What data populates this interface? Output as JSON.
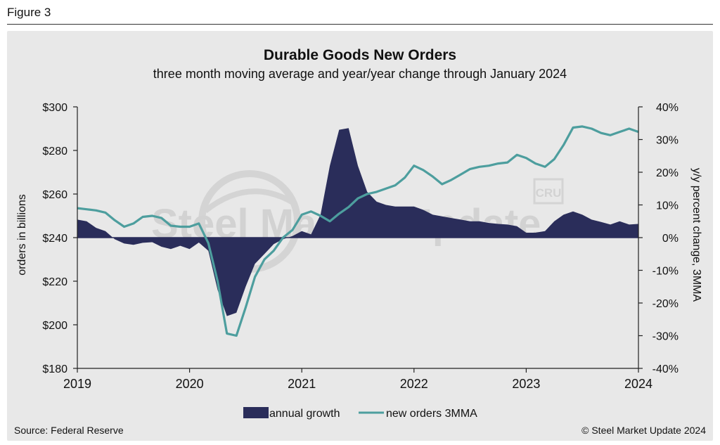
{
  "figure_label": "Figure 3",
  "footer": {
    "source": "Source: Federal Reserve",
    "copyright": "© Steel Market Update 2024"
  },
  "watermark": {
    "brand": "Steel Market Update",
    "badge": "CRU"
  },
  "colors": {
    "panel_background": "#e8e8e8",
    "annual_growth_fill": "#2a2d5a",
    "new_orders_line": "#4d9e9e"
  },
  "chart_data": {
    "type": "area+line",
    "title": "Durable Goods New Orders",
    "subtitle": "three month moving average and year/year change through January 2024",
    "ylabel_left": "orders in billions",
    "ylabel_right": "y/y percent change, 3MMA",
    "x_ticks": [
      "2019",
      "2020",
      "2021",
      "2022",
      "2023",
      "2024"
    ],
    "x_range": [
      2019.0,
      2024.0
    ],
    "y_left": {
      "range": [
        180,
        300
      ],
      "ticks": [
        180,
        200,
        220,
        240,
        260,
        280,
        300
      ],
      "tick_labels": [
        "$180",
        "$200",
        "$220",
        "$240",
        "$260",
        "$280",
        "$300"
      ]
    },
    "y_right": {
      "range": [
        -40,
        40
      ],
      "ticks": [
        -40,
        -30,
        -20,
        -10,
        0,
        10,
        20,
        30,
        40
      ],
      "tick_labels": [
        "-40%",
        "-30%",
        "-20%",
        "-10%",
        "0%",
        "10%",
        "20%",
        "30%",
        "40%"
      ]
    },
    "legend": [
      "annual growth",
      "new orders 3MMA"
    ],
    "series": [
      {
        "name": "annual growth",
        "kind": "area",
        "axis": "right",
        "points": [
          [
            2019.0,
            5.5
          ],
          [
            2019.083,
            5.0
          ],
          [
            2019.167,
            3.0
          ],
          [
            2019.25,
            2.0
          ],
          [
            2019.333,
            -0.5
          ],
          [
            2019.417,
            -1.8
          ],
          [
            2019.5,
            -2.2
          ],
          [
            2019.583,
            -1.6
          ],
          [
            2019.667,
            -1.4
          ],
          [
            2019.75,
            -2.8
          ],
          [
            2019.833,
            -3.5
          ],
          [
            2019.917,
            -2.5
          ],
          [
            2020.0,
            -3.5
          ],
          [
            2020.083,
            -1.5
          ],
          [
            2020.167,
            -4.0
          ],
          [
            2020.25,
            -16.0
          ],
          [
            2020.333,
            -24.0
          ],
          [
            2020.417,
            -23.0
          ],
          [
            2020.5,
            -15.0
          ],
          [
            2020.583,
            -8.0
          ],
          [
            2020.667,
            -5.0
          ],
          [
            2020.75,
            -2.0
          ],
          [
            2020.833,
            -0.5
          ],
          [
            2020.917,
            0.5
          ],
          [
            2021.0,
            2.0
          ],
          [
            2021.083,
            1.0
          ],
          [
            2021.167,
            7.0
          ],
          [
            2021.25,
            22.0
          ],
          [
            2021.333,
            33.0
          ],
          [
            2021.417,
            33.5
          ],
          [
            2021.5,
            22.0
          ],
          [
            2021.583,
            14.0
          ],
          [
            2021.667,
            11.0
          ],
          [
            2021.75,
            10.0
          ],
          [
            2021.833,
            9.5
          ],
          [
            2021.917,
            9.5
          ],
          [
            2022.0,
            9.5
          ],
          [
            2022.083,
            8.5
          ],
          [
            2022.167,
            7.0
          ],
          [
            2022.25,
            6.5
          ],
          [
            2022.333,
            6.0
          ],
          [
            2022.417,
            5.5
          ],
          [
            2022.5,
            5.0
          ],
          [
            2022.583,
            5.0
          ],
          [
            2022.667,
            4.5
          ],
          [
            2022.75,
            4.2
          ],
          [
            2022.833,
            4.0
          ],
          [
            2022.917,
            3.5
          ],
          [
            2023.0,
            1.5
          ],
          [
            2023.083,
            1.5
          ],
          [
            2023.167,
            2.0
          ],
          [
            2023.25,
            5.0
          ],
          [
            2023.333,
            7.0
          ],
          [
            2023.417,
            8.0
          ],
          [
            2023.5,
            7.0
          ],
          [
            2023.583,
            5.5
          ],
          [
            2023.667,
            4.8
          ],
          [
            2023.75,
            4.0
          ],
          [
            2023.833,
            5.0
          ],
          [
            2023.917,
            4.0
          ],
          [
            2024.0,
            4.2
          ]
        ]
      },
      {
        "name": "new orders 3MMA",
        "kind": "line",
        "axis": "left",
        "points": [
          [
            2019.0,
            253.5
          ],
          [
            2019.083,
            253.0
          ],
          [
            2019.167,
            252.5
          ],
          [
            2019.25,
            251.5
          ],
          [
            2019.333,
            248.0
          ],
          [
            2019.417,
            245.0
          ],
          [
            2019.5,
            246.5
          ],
          [
            2019.583,
            249.5
          ],
          [
            2019.667,
            250.0
          ],
          [
            2019.75,
            249.0
          ],
          [
            2019.833,
            245.5
          ],
          [
            2019.917,
            245.0
          ],
          [
            2020.0,
            245.0
          ],
          [
            2020.083,
            246.5
          ],
          [
            2020.167,
            237.5
          ],
          [
            2020.25,
            220.0
          ],
          [
            2020.333,
            196.0
          ],
          [
            2020.417,
            195.0
          ],
          [
            2020.5,
            208.0
          ],
          [
            2020.583,
            222.0
          ],
          [
            2020.667,
            230.0
          ],
          [
            2020.75,
            234.0
          ],
          [
            2020.833,
            240.0
          ],
          [
            2020.917,
            243.5
          ],
          [
            2021.0,
            250.5
          ],
          [
            2021.083,
            252.0
          ],
          [
            2021.167,
            250.0
          ],
          [
            2021.25,
            247.5
          ],
          [
            2021.333,
            251.0
          ],
          [
            2021.417,
            254.0
          ],
          [
            2021.5,
            258.0
          ],
          [
            2021.583,
            260.0
          ],
          [
            2021.667,
            261.0
          ],
          [
            2021.75,
            262.5
          ],
          [
            2021.833,
            264.0
          ],
          [
            2021.917,
            267.5
          ],
          [
            2022.0,
            273.0
          ],
          [
            2022.083,
            271.0
          ],
          [
            2022.167,
            268.0
          ],
          [
            2022.25,
            264.5
          ],
          [
            2022.333,
            266.5
          ],
          [
            2022.417,
            269.0
          ],
          [
            2022.5,
            271.5
          ],
          [
            2022.583,
            272.5
          ],
          [
            2022.667,
            273.0
          ],
          [
            2022.75,
            274.0
          ],
          [
            2022.833,
            274.5
          ],
          [
            2022.917,
            278.0
          ],
          [
            2023.0,
            276.5
          ],
          [
            2023.083,
            274.0
          ],
          [
            2023.167,
            272.5
          ],
          [
            2023.25,
            276.0
          ],
          [
            2023.333,
            282.5
          ],
          [
            2023.417,
            290.5
          ],
          [
            2023.5,
            291.0
          ],
          [
            2023.583,
            290.0
          ],
          [
            2023.667,
            288.0
          ],
          [
            2023.75,
            287.0
          ],
          [
            2023.833,
            288.5
          ],
          [
            2023.917,
            290.0
          ],
          [
            2024.0,
            288.5
          ]
        ]
      }
    ]
  }
}
